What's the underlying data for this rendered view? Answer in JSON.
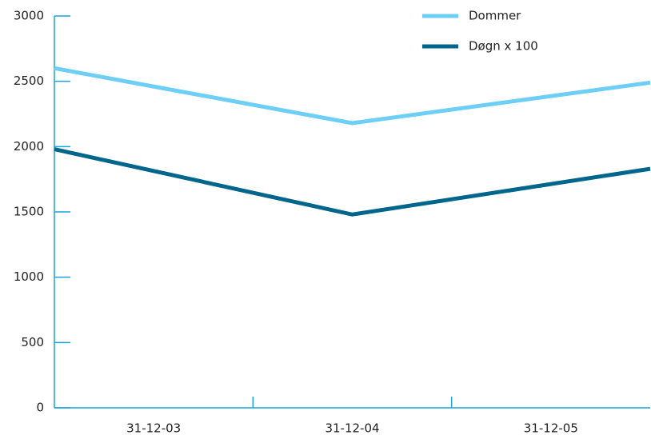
{
  "chart_data": {
    "type": "line",
    "categories": [
      "31-12-03",
      "31-12-04",
      "31-12-05"
    ],
    "series": [
      {
        "name": "Dommer",
        "color": "#6dcff6",
        "values": [
          2600,
          2180,
          2490
        ]
      },
      {
        "name": "Døgn x 100",
        "color": "#00668c",
        "values": [
          1980,
          1480,
          1830
        ]
      }
    ],
    "ylim": [
      0,
      3000
    ],
    "yticks": [
      0,
      500,
      1000,
      1500,
      2000,
      2500,
      3000
    ],
    "legend": "top-right"
  }
}
